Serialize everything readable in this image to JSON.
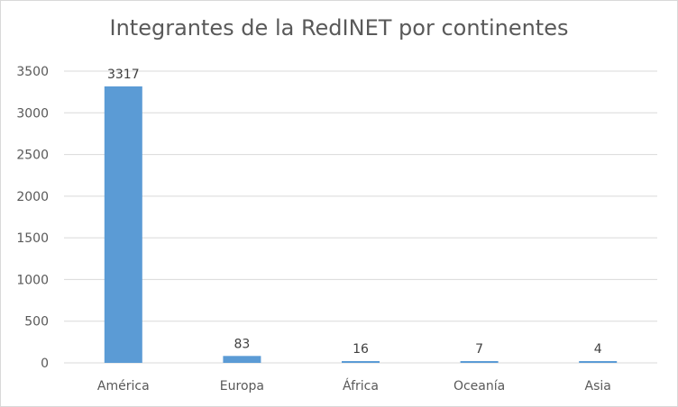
{
  "chart_data": {
    "type": "bar",
    "title": "Integrantes de la RedINET por continentes",
    "categories": [
      "América",
      "Europa",
      "África",
      "Oceanía",
      "Asia"
    ],
    "values": [
      3317,
      83,
      16,
      7,
      4
    ],
    "data_labels": [
      "3317",
      "83",
      "16",
      "7",
      "4"
    ],
    "xlabel": "",
    "ylabel": "",
    "ylim": [
      0,
      3500
    ],
    "yticks": [
      0,
      500,
      1000,
      1500,
      2000,
      2500,
      3000,
      3500
    ],
    "grid": true,
    "legend": "none",
    "bar_color": "#5b9bd5",
    "grid_color": "#d9d9d9"
  }
}
